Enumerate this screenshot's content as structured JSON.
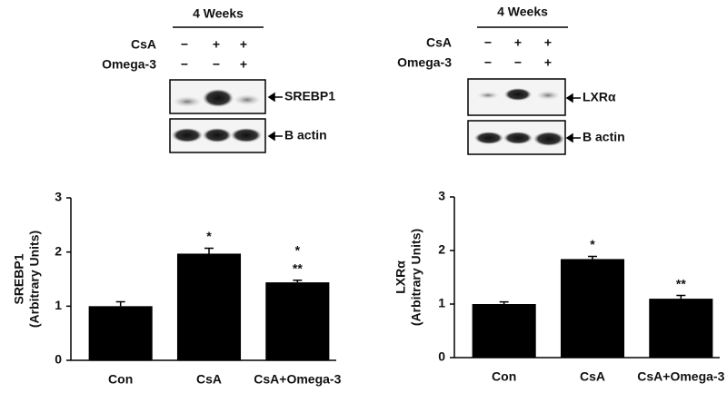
{
  "blots": [
    {
      "period": "4 Weeks",
      "rows": [
        {
          "name": "CsA",
          "signs": [
            "−",
            "+",
            "+"
          ]
        },
        {
          "name": "Omega-3",
          "signs": [
            "−",
            "−",
            "+"
          ]
        }
      ],
      "bands": [
        "SREBP1",
        "B actin"
      ]
    },
    {
      "period": "4 Weeks",
      "rows": [
        {
          "name": "CsA",
          "signs": [
            "−",
            "+",
            "+"
          ]
        },
        {
          "name": "Omega-3",
          "signs": [
            "−",
            "−",
            "+"
          ]
        }
      ],
      "bands": [
        "LXRα",
        "B actin"
      ]
    }
  ],
  "chart_data": [
    {
      "type": "bar",
      "ylabel": [
        "SREBP1",
        "(Arbitrary Units)"
      ],
      "categories": [
        "Con",
        "CsA",
        "CsA+Omega-3"
      ],
      "values": [
        1.0,
        1.97,
        1.44
      ],
      "errors": [
        0.08,
        0.1,
        0.04
      ],
      "significance": [
        [],
        [
          "*"
        ],
        [
          "*",
          "**"
        ]
      ],
      "color": "#000000",
      "ylim": [
        0,
        3
      ],
      "yticks": [
        0,
        1,
        2,
        3
      ]
    },
    {
      "type": "bar",
      "ylabel": [
        "LXRα",
        "(Arbitrary Units)"
      ],
      "categories": [
        "Con",
        "CsA",
        "CsA+Omega-3"
      ],
      "values": [
        1.0,
        1.84,
        1.1
      ],
      "errors": [
        0.04,
        0.05,
        0.06
      ],
      "significance": [
        [],
        [
          "*"
        ],
        [
          "**"
        ]
      ],
      "color": "#000000",
      "ylim": [
        0,
        3
      ],
      "yticks": [
        0,
        1,
        2,
        3
      ]
    }
  ]
}
